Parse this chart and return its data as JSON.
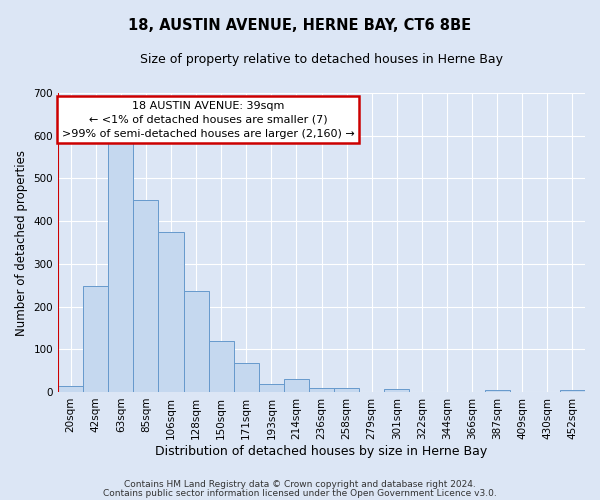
{
  "title": "18, AUSTIN AVENUE, HERNE BAY, CT6 8BE",
  "subtitle": "Size of property relative to detached houses in Herne Bay",
  "xlabel": "Distribution of detached houses by size in Herne Bay",
  "ylabel": "Number of detached properties",
  "bin_labels": [
    "20sqm",
    "42sqm",
    "63sqm",
    "85sqm",
    "106sqm",
    "128sqm",
    "150sqm",
    "171sqm",
    "193sqm",
    "214sqm",
    "236sqm",
    "258sqm",
    "279sqm",
    "301sqm",
    "322sqm",
    "344sqm",
    "366sqm",
    "387sqm",
    "409sqm",
    "430sqm",
    "452sqm"
  ],
  "bar_values": [
    15,
    247,
    583,
    450,
    375,
    237,
    120,
    68,
    18,
    30,
    10,
    10,
    0,
    7,
    0,
    0,
    0,
    5,
    0,
    0,
    5
  ],
  "bar_color": "#c5d8ef",
  "bar_edge_color": "#6699cc",
  "background_color": "#dce6f5",
  "plot_bg_color": "#dce6f5",
  "ylim": [
    0,
    700
  ],
  "yticks": [
    0,
    100,
    200,
    300,
    400,
    500,
    600,
    700
  ],
  "annotation_title": "18 AUSTIN AVENUE: 39sqm",
  "annotation_line1": "← <1% of detached houses are smaller (7)",
  "annotation_line2": ">99% of semi-detached houses are larger (2,160) →",
  "annotation_box_color": "#ffffff",
  "annotation_border_color": "#cc0000",
  "vline_color": "#cc0000",
  "footer1": "Contains HM Land Registry data © Crown copyright and database right 2024.",
  "footer2": "Contains public sector information licensed under the Open Government Licence v3.0."
}
